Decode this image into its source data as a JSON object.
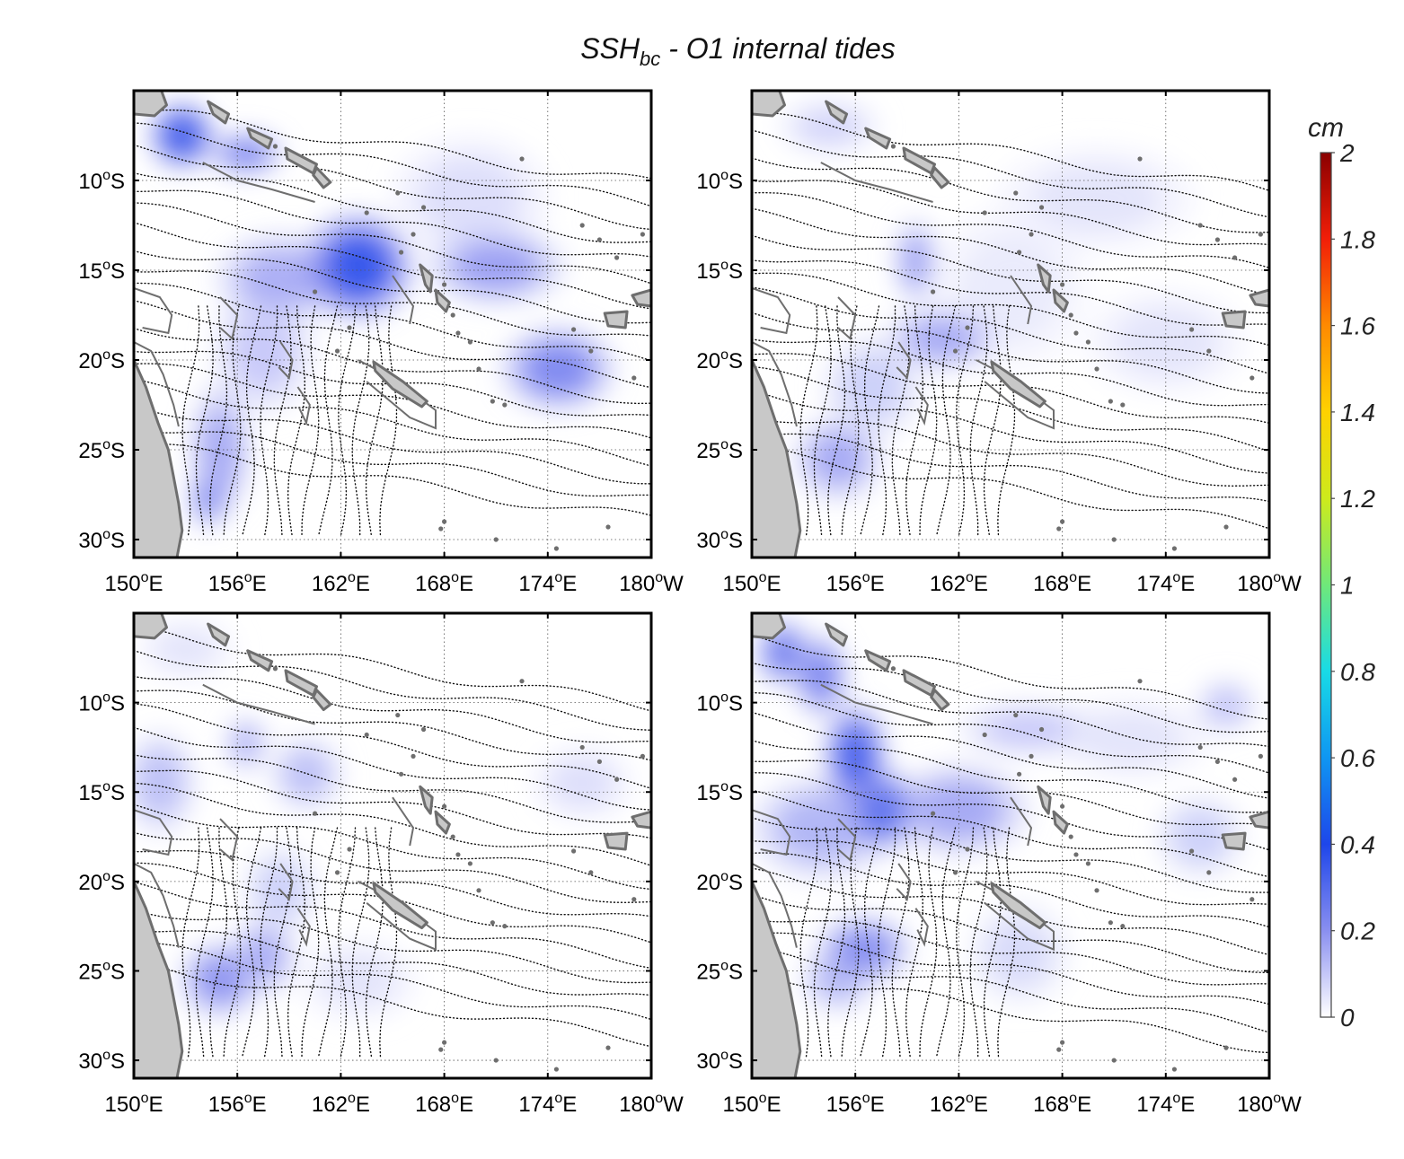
{
  "title": {
    "main": "SSH",
    "sub": "bc",
    "rest": " - O1 internal tides"
  },
  "colorbar": {
    "unit": "cm",
    "min": 0,
    "max": 2,
    "ticks": [
      "0",
      "0.2",
      "0.4",
      "0.6",
      "0.8",
      "1",
      "1.2",
      "1.4",
      "1.6",
      "1.8",
      "2"
    ],
    "colormap": [
      "#ffffff",
      "#8a8ff0",
      "#1e46ea",
      "#0f96f2",
      "#18dbe6",
      "#6fe87a",
      "#cdea1c",
      "#ffd200",
      "#ff8a00",
      "#f21e08",
      "#8a0000"
    ]
  },
  "map": {
    "lon_range": [
      150,
      180
    ],
    "lat_range": [
      -31,
      -5
    ],
    "x_ticks": [
      {
        "value": 150,
        "label": "150",
        "sup": "o",
        "hemi": "E"
      },
      {
        "value": 156,
        "label": "156",
        "sup": "o",
        "hemi": "E"
      },
      {
        "value": 162,
        "label": "162",
        "sup": "o",
        "hemi": "E"
      },
      {
        "value": 168,
        "label": "168",
        "sup": "o",
        "hemi": "E"
      },
      {
        "value": 174,
        "label": "174",
        "sup": "o",
        "hemi": "E"
      },
      {
        "value": 180,
        "label": "180",
        "sup": "o",
        "hemi": "W"
      }
    ],
    "y_ticks": [
      {
        "value": -10,
        "label": "10",
        "sup": "o",
        "hemi": "S"
      },
      {
        "value": -15,
        "label": "15",
        "sup": "o",
        "hemi": "S"
      },
      {
        "value": -20,
        "label": "20",
        "sup": "o",
        "hemi": "S"
      },
      {
        "value": -25,
        "label": "25",
        "sup": "o",
        "hemi": "S"
      },
      {
        "value": -30,
        "label": "30",
        "sup": "o",
        "hemi": "S"
      }
    ],
    "grid": true,
    "land_color": "#c8c8c8",
    "coast_color": "#6e6e6e"
  },
  "panels": [
    {
      "blobs": [
        {
          "lon": 152.8,
          "lat": -7.5,
          "sx": 1.6,
          "sy": 1.6,
          "v": 0.36
        },
        {
          "lon": 156.5,
          "lat": -8.5,
          "sx": 1.8,
          "sy": 1.0,
          "v": 0.24
        },
        {
          "lon": 163.0,
          "lat": -14.8,
          "sx": 2.7,
          "sy": 2.5,
          "v": 0.37
        },
        {
          "lon": 158.5,
          "lat": -15.5,
          "sx": 3.2,
          "sy": 2.2,
          "v": 0.15
        },
        {
          "lon": 171.0,
          "lat": -14.8,
          "sx": 3.4,
          "sy": 1.8,
          "v": 0.18
        },
        {
          "lon": 174.6,
          "lat": -20.5,
          "sx": 2.8,
          "sy": 2.0,
          "v": 0.23
        },
        {
          "lon": 155.0,
          "lat": -25.0,
          "sx": 1.5,
          "sy": 3.2,
          "v": 0.16
        },
        {
          "lon": 154.3,
          "lat": -27.8,
          "sx": 0.9,
          "sy": 1.3,
          "v": 0.24
        },
        {
          "lon": 169.5,
          "lat": -11.0,
          "sx": 4.0,
          "sy": 3.0,
          "v": 0.06
        },
        {
          "lon": 157.5,
          "lat": -19.5,
          "sx": 2.5,
          "sy": 3.0,
          "v": 0.1
        }
      ]
    },
    {
      "blobs": [
        {
          "lon": 154.5,
          "lat": -7.0,
          "sx": 2.5,
          "sy": 1.3,
          "v": 0.08
        },
        {
          "lon": 159.5,
          "lat": -14.5,
          "sx": 1.0,
          "sy": 2.0,
          "v": 0.18
        },
        {
          "lon": 161.0,
          "lat": -18.8,
          "sx": 2.8,
          "sy": 1.5,
          "v": 0.16
        },
        {
          "lon": 155.0,
          "lat": -25.5,
          "sx": 2.2,
          "sy": 2.0,
          "v": 0.16
        },
        {
          "lon": 157.0,
          "lat": -21.5,
          "sx": 2.5,
          "sy": 2.5,
          "v": 0.09
        },
        {
          "lon": 170.0,
          "lat": -11.0,
          "sx": 5.0,
          "sy": 2.5,
          "v": 0.05
        },
        {
          "lon": 174.0,
          "lat": -19.0,
          "sx": 4.0,
          "sy": 2.5,
          "v": 0.05
        },
        {
          "lon": 165.0,
          "lat": -16.0,
          "sx": 4.0,
          "sy": 4.0,
          "v": 0.04
        }
      ]
    },
    {
      "blobs": [
        {
          "lon": 151.5,
          "lat": -14.5,
          "sx": 1.8,
          "sy": 2.5,
          "v": 0.12
        },
        {
          "lon": 156.5,
          "lat": -12.3,
          "sx": 1.0,
          "sy": 1.3,
          "v": 0.15
        },
        {
          "lon": 160.0,
          "lat": -14.0,
          "sx": 1.8,
          "sy": 1.8,
          "v": 0.12
        },
        {
          "lon": 155.0,
          "lat": -25.5,
          "sx": 2.0,
          "sy": 1.8,
          "v": 0.2
        },
        {
          "lon": 157.5,
          "lat": -24.2,
          "sx": 1.6,
          "sy": 1.8,
          "v": 0.16
        },
        {
          "lon": 158.5,
          "lat": -20.5,
          "sx": 1.8,
          "sy": 2.2,
          "v": 0.09
        },
        {
          "lon": 163.0,
          "lat": -25.5,
          "sx": 3.0,
          "sy": 2.0,
          "v": 0.05
        },
        {
          "lon": 176.0,
          "lat": -14.5,
          "sx": 2.5,
          "sy": 1.8,
          "v": 0.06
        },
        {
          "lon": 153.0,
          "lat": -7.0,
          "sx": 2.5,
          "sy": 1.5,
          "v": 0.05
        }
      ]
    },
    {
      "blobs": [
        {
          "lon": 151.8,
          "lat": -7.2,
          "sx": 1.3,
          "sy": 1.6,
          "v": 0.26
        },
        {
          "lon": 154.0,
          "lat": -8.5,
          "sx": 1.3,
          "sy": 2.0,
          "v": 0.24
        },
        {
          "lon": 156.0,
          "lat": -13.0,
          "sx": 1.5,
          "sy": 2.5,
          "v": 0.34
        },
        {
          "lon": 157.5,
          "lat": -16.0,
          "sx": 1.8,
          "sy": 2.0,
          "v": 0.3
        },
        {
          "lon": 154.0,
          "lat": -17.0,
          "sx": 3.5,
          "sy": 2.5,
          "v": 0.14
        },
        {
          "lon": 162.0,
          "lat": -16.0,
          "sx": 3.5,
          "sy": 2.2,
          "v": 0.16
        },
        {
          "lon": 156.5,
          "lat": -23.8,
          "sx": 2.3,
          "sy": 1.6,
          "v": 0.22
        },
        {
          "lon": 155.0,
          "lat": -25.5,
          "sx": 1.8,
          "sy": 1.5,
          "v": 0.14
        },
        {
          "lon": 166.0,
          "lat": -11.5,
          "sx": 3.5,
          "sy": 1.3,
          "v": 0.1
        },
        {
          "lon": 177.5,
          "lat": -10.2,
          "sx": 1.5,
          "sy": 1.3,
          "v": 0.11
        },
        {
          "lon": 176.0,
          "lat": -17.5,
          "sx": 2.2,
          "sy": 2.0,
          "v": 0.09
        },
        {
          "lon": 165.5,
          "lat": -24.0,
          "sx": 2.5,
          "sy": 2.5,
          "v": 0.07
        },
        {
          "lon": 172.0,
          "lat": -12.0,
          "sx": 4.0,
          "sy": 2.0,
          "v": 0.05
        }
      ]
    }
  ]
}
